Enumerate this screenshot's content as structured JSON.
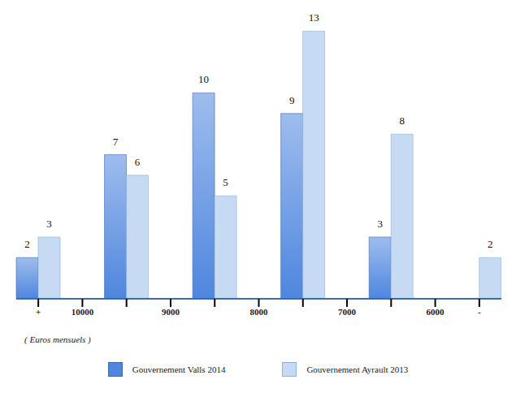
{
  "chart_data": {
    "type": "bar",
    "categories": [
      "+",
      "10000",
      null,
      "9000",
      null,
      "8000",
      null,
      "7000",
      null,
      "6000",
      "-"
    ],
    "series": [
      {
        "name": "Gouvernement Valls 2014",
        "color": "#4f86de",
        "values": [
          2,
          null,
          7,
          null,
          10,
          null,
          9,
          null,
          3,
          null,
          0
        ]
      },
      {
        "name": "Gouvernement Ayrault 2013",
        "color": "#c6daf4",
        "values": [
          3,
          null,
          6,
          null,
          5,
          null,
          13,
          null,
          8,
          null,
          2
        ]
      }
    ],
    "ylim": [
      0,
      14
    ],
    "tick_labels": "x",
    "data_labels": true,
    "legend": "bottom",
    "annotations": [
      "( Euros mensuels )"
    ]
  }
}
